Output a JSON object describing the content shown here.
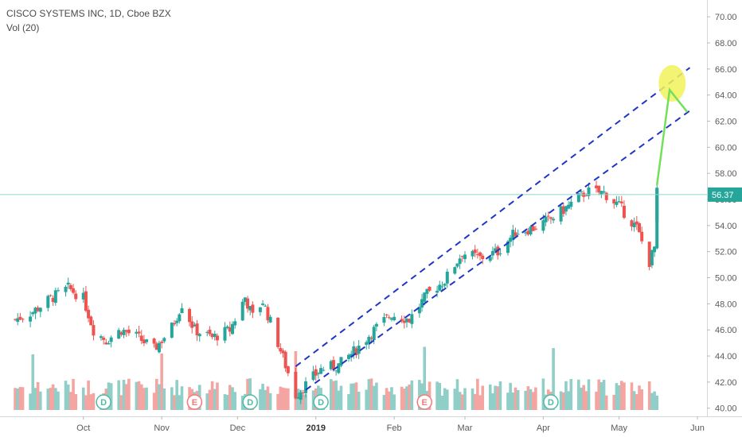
{
  "header": {
    "symbol_line": "CISCO SYSTEMS INC, 1D, Cboe BZX",
    "volume_line": "Vol (20)"
  },
  "chart_data": {
    "type": "candlestick",
    "price_axis": {
      "ticks": [
        "70.00",
        "68.00",
        "66.00",
        "64.00",
        "62.00",
        "60.00",
        "58.00",
        "56.00",
        "54.00",
        "52.00",
        "50.00",
        "48.00",
        "46.00",
        "44.00",
        "42.00",
        "40.00"
      ],
      "ylim": [
        39.8,
        70.8
      ]
    },
    "last_price": {
      "label": "56.37",
      "value": 56.37
    },
    "time_axis": {
      "labels": [
        "Oct",
        "Nov",
        "Dec",
        "2019",
        "Feb",
        "Mar",
        "Apr",
        "May",
        "Jun"
      ]
    },
    "events": [
      {
        "label": "D",
        "near": "Oct"
      },
      {
        "label": "E",
        "near": "Nov"
      },
      {
        "label": "D",
        "near": "Dec"
      },
      {
        "label": "D",
        "near": "2019"
      },
      {
        "label": "E",
        "near": "Feb"
      },
      {
        "label": "D",
        "near": "Apr"
      }
    ],
    "price_path": [
      [
        "2018-09-04",
        46.8
      ],
      [
        "2018-09-11",
        47.4
      ],
      [
        "2018-09-18",
        48.4
      ],
      [
        "2018-09-25",
        49.2
      ],
      [
        "2018-10-01",
        48.4
      ],
      [
        "2018-10-05",
        46.0
      ],
      [
        "2018-10-10",
        45.2
      ],
      [
        "2018-10-16",
        46.0
      ],
      [
        "2018-10-22",
        45.5
      ],
      [
        "2018-10-29",
        44.5
      ],
      [
        "2018-11-05",
        46.2
      ],
      [
        "2018-11-09",
        48.0
      ],
      [
        "2018-11-14",
        46.0
      ],
      [
        "2018-11-21",
        45.4
      ],
      [
        "2018-11-28",
        46.0
      ],
      [
        "2018-12-04",
        48.5
      ],
      [
        "2018-12-07",
        47.0
      ],
      [
        "2018-12-11",
        48.2
      ],
      [
        "2018-12-17",
        45.0
      ],
      [
        "2018-12-24",
        41.0
      ],
      [
        "2019-01-03",
        43.0
      ],
      [
        "2019-01-10",
        43.3
      ],
      [
        "2019-01-17",
        44.5
      ],
      [
        "2019-01-24",
        46.0
      ],
      [
        "2019-01-31",
        47.2
      ],
      [
        "2019-02-07",
        46.8
      ],
      [
        "2019-02-14",
        48.7
      ],
      [
        "2019-02-21",
        49.8
      ],
      [
        "2019-02-28",
        51.9
      ],
      [
        "2019-03-07",
        51.5
      ],
      [
        "2019-03-14",
        52.0
      ],
      [
        "2019-03-21",
        53.5
      ],
      [
        "2019-03-28",
        53.8
      ],
      [
        "2019-04-04",
        54.5
      ],
      [
        "2019-04-11",
        55.5
      ],
      [
        "2019-04-18",
        56.6
      ],
      [
        "2019-04-25",
        56.5
      ],
      [
        "2019-05-01",
        55.5
      ],
      [
        "2019-05-08",
        53.8
      ],
      [
        "2019-05-13",
        51.2
      ],
      [
        "2019-05-15",
        52.3
      ],
      [
        "2019-05-16",
        56.37
      ]
    ]
  },
  "colors": {
    "up": "#26a69a",
    "down": "#ef5350",
    "vol_up": "#8fcfc8",
    "vol_down": "#f4a4a1",
    "last_price_line": "#8ed4cb",
    "channel": "#1f35c9",
    "arrow": "#72e05a",
    "highlight": "#f2f25a",
    "event_e": "#f37b7b",
    "event_d": "#4dbba7"
  }
}
